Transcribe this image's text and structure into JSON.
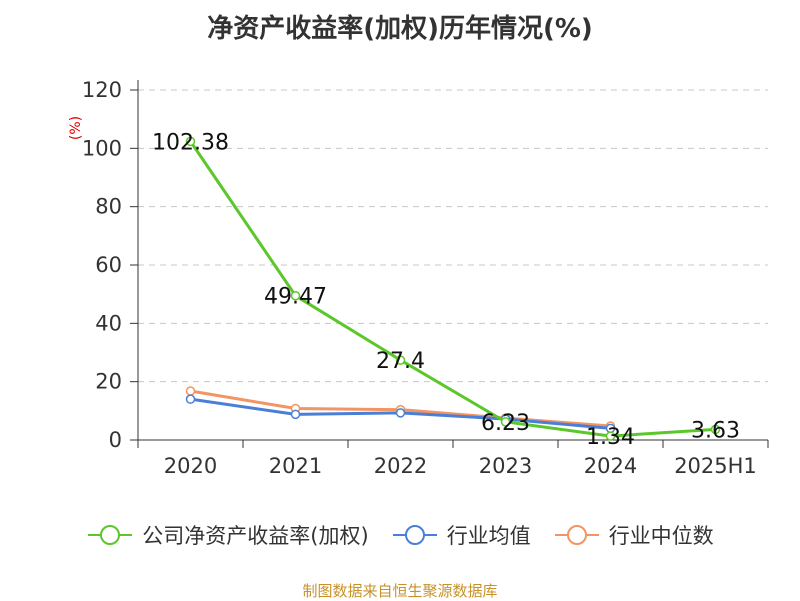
{
  "title": "净资产收益率(加权)历年情况(%)",
  "source": "制图数据来自恒生聚源数据库",
  "chart_data": {
    "type": "line",
    "title": "净资产收益率(加权)历年情况(%)",
    "unit": "(%)",
    "categories": [
      "2020",
      "2021",
      "2022",
      "2023",
      "2024",
      "2025H1"
    ],
    "y_ticks": [
      "0",
      "20",
      "40",
      "60",
      "80",
      "100",
      "120"
    ],
    "ylim": [
      0,
      120
    ],
    "grid": true,
    "legend_position": "bottom",
    "series": [
      {
        "name": "公司净资产收益率(加权)",
        "color": "#5cc72a",
        "values": [
          102.38,
          49.47,
          27.4,
          6.23,
          1.34,
          3.63
        ],
        "labels": [
          "102.38",
          "49.47",
          "27.4",
          "6.23",
          "1.34",
          "3.63"
        ]
      },
      {
        "name": "行业均值",
        "color": "#4a7fd8",
        "values": [
          14.0,
          8.8,
          9.3,
          7.2,
          4.0,
          null
        ]
      },
      {
        "name": "行业中位数",
        "color": "#f39463",
        "values": [
          16.8,
          10.8,
          10.4,
          7.5,
          4.8,
          null
        ]
      }
    ]
  }
}
